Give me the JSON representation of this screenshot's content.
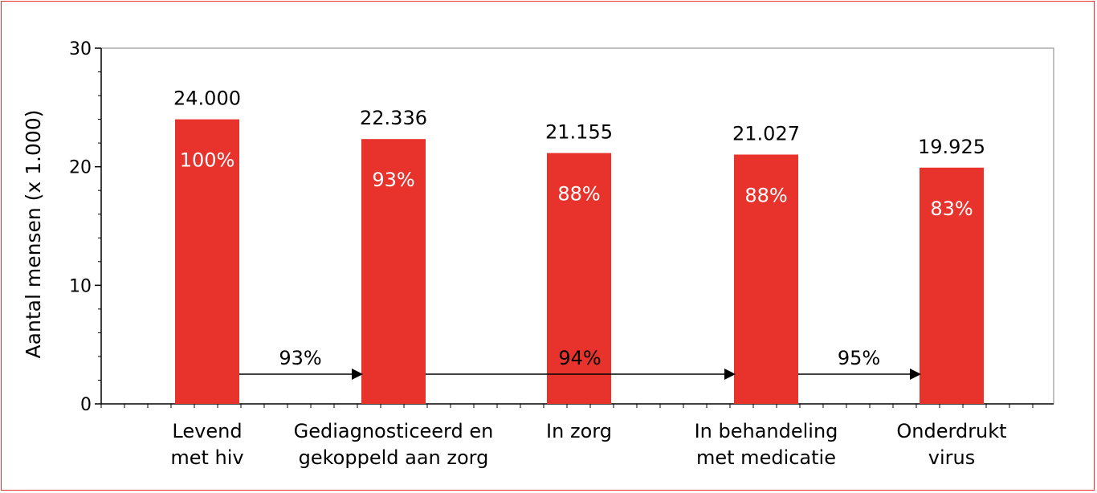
{
  "chart_data": {
    "type": "bar",
    "title": "",
    "ylabel": "Aantal mensen (x 1.000)",
    "xlabel": "",
    "ylim": [
      0,
      30
    ],
    "yticks": [
      0,
      10,
      20,
      30
    ],
    "grid": false,
    "categories": [
      [
        "Levend",
        "met hiv"
      ],
      [
        "Gediagnosticeerd en",
        "gekoppeld aan zorg"
      ],
      [
        "In zorg"
      ],
      [
        "In behandeling",
        "met medicatie"
      ],
      [
        "Onderdrukt",
        "virus"
      ]
    ],
    "values": [
      24.0,
      22.336,
      21.155,
      21.027,
      19.925
    ],
    "value_labels": [
      "24.000",
      "22.336",
      "21.155",
      "21.027",
      "19.925"
    ],
    "percent_labels": [
      "100%",
      "93%",
      "88%",
      "88%",
      "83%"
    ],
    "arrows": [
      {
        "from": 0,
        "to": 1,
        "label": "93%"
      },
      {
        "from": 1,
        "to": 3,
        "label": "94%"
      },
      {
        "from": 3,
        "to": 4,
        "label": "95%"
      }
    ],
    "bar_color": "#e8322c",
    "percent_label_color": "#ffffff"
  }
}
